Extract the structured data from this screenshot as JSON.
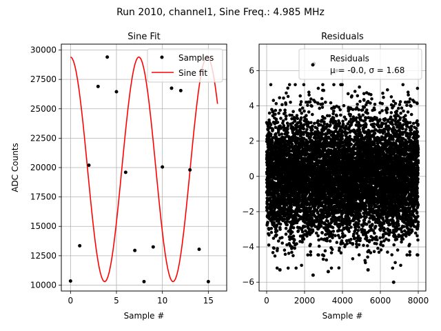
{
  "figure": {
    "suptitle": "Run 2010, channel1, Sine Freq.: 4.985 MHz"
  },
  "chart_data": [
    {
      "type": "line",
      "title": "Sine Fit",
      "xlabel": "Sample #",
      "ylabel": "ADC Counts",
      "xlim": [
        -1,
        17
      ],
      "ylim": [
        9500,
        30500
      ],
      "xticks": [
        0,
        5,
        10,
        15
      ],
      "yticks": [
        10000,
        12500,
        15000,
        17500,
        20000,
        22500,
        25000,
        27500,
        30000
      ],
      "grid": true,
      "legend": {
        "placement": "top-right",
        "entries": [
          "Samples",
          "Sine fit"
        ]
      },
      "series": [
        {
          "name": "Samples",
          "kind": "scatter",
          "color": "#000000",
          "x": [
            0,
            1,
            2,
            3,
            4,
            5,
            6,
            7,
            8,
            9,
            10,
            11,
            12,
            13,
            14,
            15
          ],
          "y": [
            10350,
            13350,
            20200,
            26900,
            29400,
            26450,
            19600,
            12950,
            10300,
            13250,
            20050,
            26750,
            26550,
            19800,
            13050,
            10300
          ]
        },
        {
          "name": "Sine fit",
          "kind": "line",
          "color": "#ff0000",
          "model": {
            "offset": 19850,
            "amplitude": 9550,
            "omega": 0.8446,
            "phase": -4.712
          },
          "x_range": [
            0,
            16
          ]
        }
      ]
    },
    {
      "type": "scatter",
      "title": "Residuals",
      "xlabel": "Sample #",
      "ylabel": "",
      "xlim": [
        -400,
        8400
      ],
      "ylim": [
        -6.5,
        7.5
      ],
      "xticks": [
        0,
        2000,
        4000,
        6000,
        8000
      ],
      "yticks": [
        -6,
        -4,
        -2,
        0,
        2,
        4,
        6
      ],
      "grid": true,
      "legend": {
        "placement": "top-right",
        "entries": [
          "Residuals",
          "μ = -0.0, σ = 1.68"
        ]
      },
      "series": [
        {
          "name": "Residuals",
          "color": "#000000",
          "count": 8000,
          "mean": 0.0,
          "std": 1.68,
          "x_range": [
            0,
            8000
          ],
          "outliers": [
            {
              "x": 2500,
              "y": 6.4
            },
            {
              "x": 3700,
              "y": 6.0
            },
            {
              "x": 4600,
              "y": 6.0
            },
            {
              "x": 2450,
              "y": -5.6
            },
            {
              "x": 6700,
              "y": -6.0
            },
            {
              "x": 3250,
              "y": -5.4
            },
            {
              "x": 5350,
              "y": -5.3
            },
            {
              "x": 700,
              "y": -5.3
            }
          ]
        }
      ]
    }
  ]
}
